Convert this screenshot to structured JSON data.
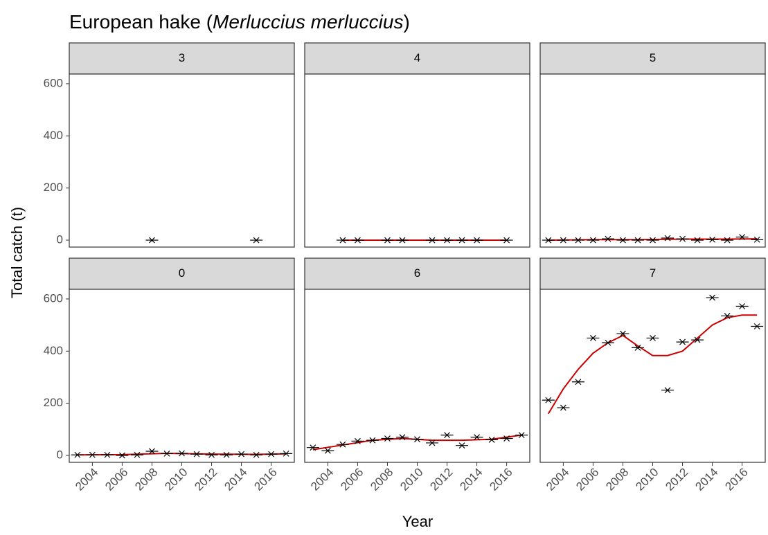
{
  "title": {
    "plain": "European hake (",
    "italic": "Merluccius merluccius",
    "end": ")"
  },
  "x_label": "Year",
  "y_label": "Total catch (t)",
  "chart_data": [
    {
      "type": "scatter",
      "title": "3",
      "color": "#000000",
      "x": [
        2008,
        2015
      ],
      "values": [
        0,
        0
      ],
      "xlim": [
        2002.45,
        2017.55
      ],
      "ylim": [
        -26.5,
        637
      ],
      "yticks": [
        0,
        200,
        400,
        600
      ]
    },
    {
      "type": "scatter",
      "title": "4",
      "color": "#000000",
      "x": [
        2005,
        2006,
        2008,
        2009,
        2011,
        2012,
        2013,
        2014,
        2016
      ],
      "values": [
        0,
        0,
        0,
        0,
        0,
        0,
        0,
        0,
        0
      ],
      "fit": {
        "color": "#cc0000",
        "x": [
          2005,
          2016
        ],
        "values": [
          0,
          0
        ]
      },
      "xlim": [
        2002.45,
        2017.55
      ],
      "ylim": [
        -26.5,
        637
      ]
    },
    {
      "type": "scatter",
      "title": "5",
      "color": "#000000",
      "x": [
        2003,
        2004,
        2005,
        2006,
        2007,
        2008,
        2009,
        2010,
        2011,
        2012,
        2013,
        2014,
        2015,
        2016,
        2017
      ],
      "values": [
        0,
        0,
        0,
        0,
        5,
        0,
        0,
        0,
        8,
        5,
        0,
        2,
        0,
        12,
        2
      ],
      "fit": {
        "color": "#cc0000",
        "x": [
          2003,
          2006,
          2009,
          2012,
          2015,
          2017
        ],
        "values": [
          0,
          2,
          2,
          4,
          4,
          5
        ]
      },
      "xlim": [
        2002.45,
        2017.55
      ],
      "ylim": [
        -26.5,
        637
      ]
    },
    {
      "type": "scatter",
      "title": "0",
      "color": "#000000",
      "x": [
        2003,
        2004,
        2005,
        2006,
        2007,
        2008,
        2009,
        2010,
        2011,
        2012,
        2013,
        2014,
        2015,
        2016,
        2017
      ],
      "values": [
        2,
        2,
        2,
        0,
        2,
        16,
        7,
        8,
        5,
        2,
        2,
        5,
        2,
        5,
        7
      ],
      "fit": {
        "color": "#cc0000",
        "x": [
          2003,
          2006,
          2009,
          2012,
          2015,
          2017
        ],
        "values": [
          2,
          3,
          8,
          5,
          4,
          6
        ]
      },
      "xlim": [
        2002.45,
        2017.55
      ],
      "ylim": [
        -26.5,
        637
      ],
      "xticks": [
        2004,
        2006,
        2008,
        2010,
        2012,
        2014,
        2016
      ],
      "yticks": [
        0,
        200,
        400,
        600
      ]
    },
    {
      "type": "scatter",
      "title": "6",
      "color": "#000000",
      "x": [
        2003,
        2004,
        2005,
        2006,
        2007,
        2008,
        2009,
        2010,
        2011,
        2012,
        2013,
        2014,
        2015,
        2016,
        2017
      ],
      "values": [
        30,
        18,
        42,
        55,
        58,
        65,
        70,
        62,
        48,
        78,
        38,
        70,
        60,
        65,
        78
      ],
      "fit": {
        "color": "#cc0000",
        "x": [
          2003,
          2005,
          2007,
          2009,
          2011,
          2013,
          2015,
          2017
        ],
        "values": [
          22,
          40,
          58,
          65,
          58,
          58,
          62,
          78
        ]
      },
      "xlim": [
        2002.45,
        2017.55
      ],
      "ylim": [
        -26.5,
        637
      ],
      "xticks": [
        2004,
        2006,
        2008,
        2010,
        2012,
        2014,
        2016
      ]
    },
    {
      "type": "scatter",
      "title": "7",
      "color": "#000000",
      "x": [
        2003,
        2004,
        2005,
        2006,
        2007,
        2008,
        2009,
        2010,
        2011,
        2012,
        2013,
        2014,
        2015,
        2016,
        2017
      ],
      "values": [
        212,
        183,
        282,
        450,
        432,
        467,
        413,
        450,
        250,
        435,
        443,
        605,
        535,
        572,
        495
      ],
      "fit": {
        "color": "#cc0000",
        "x": [
          2003,
          2004,
          2005,
          2006,
          2007,
          2008,
          2009,
          2010,
          2011,
          2012,
          2013,
          2014,
          2015,
          2016,
          2017
        ],
        "values": [
          160,
          255,
          330,
          392,
          432,
          460,
          420,
          383,
          383,
          400,
          450,
          500,
          528,
          538,
          538
        ]
      },
      "xlim": [
        2002.45,
        2017.55
      ],
      "ylim": [
        -26.5,
        637
      ],
      "xticks": [
        2004,
        2006,
        2008,
        2010,
        2012,
        2014,
        2016
      ]
    }
  ]
}
